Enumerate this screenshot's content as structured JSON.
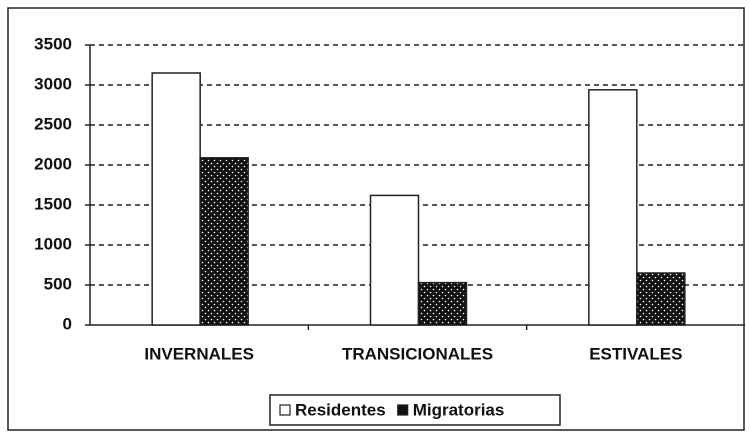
{
  "chart_data": {
    "type": "bar",
    "categories": [
      "INVERNALES",
      "TRANSICIONALES",
      "ESTIVALES"
    ],
    "series": [
      {
        "name": "Residentes",
        "color": "#ffffff",
        "values": [
          3150,
          1620,
          2940
        ]
      },
      {
        "name": "Migratorias",
        "color": "#111111",
        "values": [
          2090,
          530,
          650
        ]
      }
    ],
    "ylim": [
      0,
      3500
    ],
    "yticks": [
      0,
      500,
      1000,
      1500,
      2000,
      2500,
      3000,
      3500
    ],
    "grid": true,
    "legend": "bottom"
  }
}
